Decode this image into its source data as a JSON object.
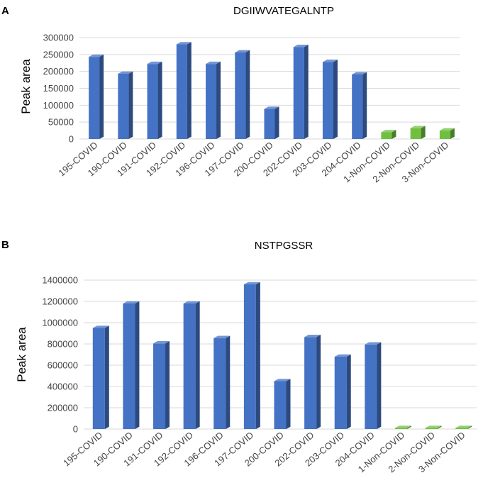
{
  "chart_data": [
    {
      "panel_label": "A",
      "type": "bar",
      "title": "DGIIWVATEGALNTP",
      "ylabel": "Peak area",
      "xlabel": "",
      "ylim": [
        0,
        300000
      ],
      "yticks": [
        "0",
        "50000",
        "100000",
        "150000",
        "200000",
        "250000",
        "300000"
      ],
      "categories": [
        "195-COVID",
        "190-COVID",
        "191-COVID",
        "192-COVID",
        "196-COVID",
        "197-COVID",
        "200-COVID",
        "202-COVID",
        "203-COVID",
        "204-COVID",
        "1-Non-COVID",
        "2-Non-COVID",
        "3-Non-COVID"
      ],
      "values": [
        243000,
        193000,
        222000,
        280000,
        222000,
        256000,
        89000,
        272000,
        228000,
        191000,
        20000,
        32000,
        25000
      ],
      "bar_colors": [
        "#4472c4",
        "#4472c4",
        "#4472c4",
        "#4472c4",
        "#4472c4",
        "#4472c4",
        "#4472c4",
        "#4472c4",
        "#4472c4",
        "#4472c4",
        "#70c040",
        "#70c040",
        "#70c040"
      ],
      "grid": true,
      "legend": "none"
    },
    {
      "panel_label": "B",
      "type": "bar",
      "title": "NSTPGSSR",
      "ylabel": "Peak area",
      "xlabel": "",
      "ylim": [
        0,
        1400000
      ],
      "yticks": [
        "0",
        "200000",
        "400000",
        "600000",
        "800000",
        "1000000",
        "1200000",
        "1400000"
      ],
      "categories": [
        "195-COVID",
        "190-COVID",
        "191-COVID",
        "192-COVID",
        "196-COVID",
        "197-COVID",
        "200-COVID",
        "202-COVID",
        "203-COVID",
        "204-COVID",
        "1-Non-COVID",
        "2-Non-COVID",
        "3-Non-COVID"
      ],
      "values": [
        950000,
        1180000,
        805000,
        1180000,
        855000,
        1360000,
        450000,
        865000,
        680000,
        795000,
        6000,
        6000,
        6000
      ],
      "bar_colors": [
        "#4472c4",
        "#4472c4",
        "#4472c4",
        "#4472c4",
        "#4472c4",
        "#4472c4",
        "#4472c4",
        "#4472c4",
        "#4472c4",
        "#4472c4",
        "#70c040",
        "#70c040",
        "#70c040"
      ],
      "grid": true,
      "legend": "none"
    }
  ]
}
